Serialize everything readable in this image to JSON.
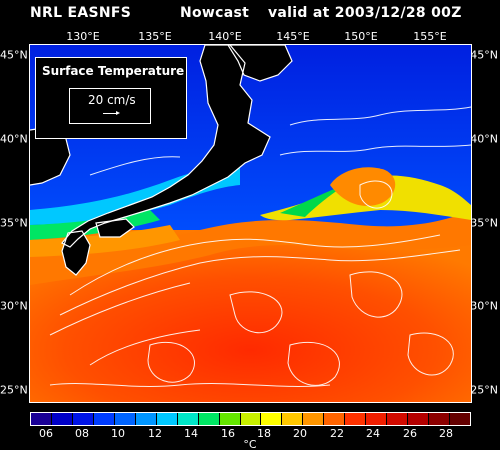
{
  "header": {
    "source": "NRL EASNFS",
    "product": "Nowcast",
    "valid": "valid at 2003/12/28 00Z"
  },
  "axes": {
    "lon_labels": [
      "130°E",
      "135°E",
      "140°E",
      "145°E",
      "150°E",
      "155°E"
    ],
    "lat_labels": [
      "45°N",
      "40°N",
      "35°N",
      "30°N",
      "25°N"
    ]
  },
  "legend": {
    "title": "Surface Temperature",
    "scale_label": "20 cm/s"
  },
  "colorbar": {
    "unit": "°C",
    "labels": [
      "06",
      "08",
      "10",
      "12",
      "14",
      "16",
      "18",
      "20",
      "22",
      "24",
      "26",
      "28"
    ],
    "colors": [
      "#1a0096",
      "#0000c8",
      "#0014e6",
      "#003cff",
      "#0064ff",
      "#0096ff",
      "#00c8ff",
      "#00e6c8",
      "#00e664",
      "#64e600",
      "#c8f000",
      "#ffff00",
      "#ffc800",
      "#ff9600",
      "#ff6400",
      "#ff3200",
      "#f01e00",
      "#d20a00",
      "#b40000",
      "#8c0000",
      "#640000"
    ]
  },
  "palette": {
    "land": "#000000",
    "coast": "#ffffff",
    "ocean_cold": "#0028ff",
    "ocean_mid": "#00c8ff",
    "ocean_green": "#00e650",
    "ocean_yellow": "#f0f000",
    "ocean_warm": "#ff6400",
    "ocean_hot": "#ff2800"
  }
}
